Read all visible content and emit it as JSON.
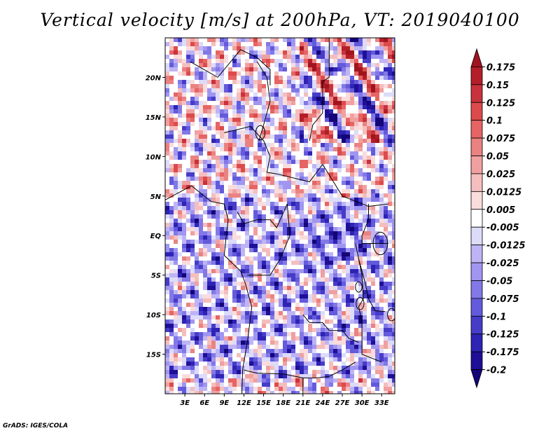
{
  "title": "Vertical velocity [m/s] at 200hPa, VT: 2019040100",
  "footer": "GrADS: IGES/COLA",
  "chart_data": {
    "type": "heatmap",
    "title": "Vertical velocity [m/s] at 200hPa, VT: 2019040100",
    "variable": "Vertical velocity",
    "units": "m/s",
    "level": "200hPa",
    "valid_time": "2019040100",
    "xlim": [
      0,
      35
    ],
    "ylim": [
      -20,
      25
    ],
    "x_ticks": [
      {
        "value": 3,
        "label": "3E"
      },
      {
        "value": 6,
        "label": "6E"
      },
      {
        "value": 9,
        "label": "9E"
      },
      {
        "value": 12,
        "label": "12E"
      },
      {
        "value": 15,
        "label": "15E"
      },
      {
        "value": 18,
        "label": "18E"
      },
      {
        "value": 21,
        "label": "21E"
      },
      {
        "value": 24,
        "label": "24E"
      },
      {
        "value": 27,
        "label": "27E"
      },
      {
        "value": 30,
        "label": "30E"
      },
      {
        "value": 33,
        "label": "33E"
      }
    ],
    "y_ticks": [
      {
        "value": 20,
        "label": "20N"
      },
      {
        "value": 15,
        "label": "15N"
      },
      {
        "value": 10,
        "label": "10N"
      },
      {
        "value": 5,
        "label": "5N"
      },
      {
        "value": 0,
        "label": "EQ"
      },
      {
        "value": -5,
        "label": "5S"
      },
      {
        "value": -10,
        "label": "10S"
      },
      {
        "value": -15,
        "label": "15S"
      }
    ],
    "colorbar": {
      "orientation": "vertical",
      "placement": "right",
      "labels": [
        "0.175",
        "0.15",
        "0.125",
        "0.1",
        "0.075",
        "0.05",
        "0.025",
        "0.0125",
        "0.005",
        "-0.005",
        "-0.0125",
        "-0.025",
        "-0.05",
        "-0.075",
        "-0.1",
        "-0.125",
        "-0.175",
        "-0.2"
      ],
      "colors": [
        "#a0141e",
        "#b41e28",
        "#c8323c",
        "#dc4b4b",
        "#e66464",
        "#eb8282",
        "#f0a0a0",
        "#f5bebe",
        "#fadcdc",
        "#ffffff",
        "#dcdcfa",
        "#beb4f5",
        "#a096f0",
        "#8278e6",
        "#645adc",
        "#463cc8",
        "#2d23b4",
        "#1e0f96",
        "#140578"
      ],
      "extend": "both"
    }
  }
}
